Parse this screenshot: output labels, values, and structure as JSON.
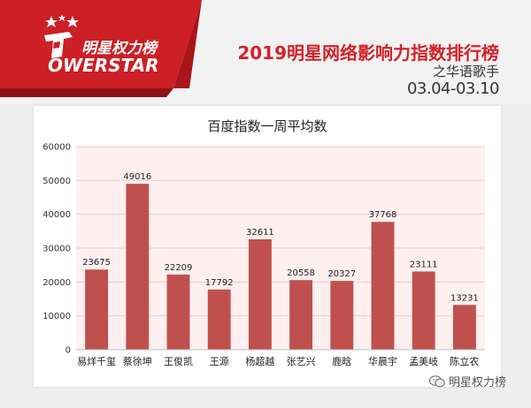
{
  "header": {
    "logo_cn": "明星权力榜",
    "logo_en": "OWERSTAR",
    "title_main": "2019明星网络影响力指数排行榜",
    "title_sub": "之华语歌手",
    "title_date": "03.04-03.10",
    "accent_color": "#d2232a",
    "banner_color": "#cc1f26"
  },
  "watermark": {
    "icon": "wechat-icon",
    "text": "明星权力榜"
  },
  "chart_data": {
    "type": "bar",
    "title": "百度指数一周平均数",
    "categories": [
      "易烊千玺",
      "蔡徐坤",
      "王俊凯",
      "王源",
      "杨超越",
      "张艺兴",
      "鹿晗",
      "华晨宇",
      "孟美岐",
      "陈立农"
    ],
    "values": [
      23675,
      49016,
      22209,
      17792,
      32611,
      20558,
      20327,
      37768,
      23111,
      13231
    ],
    "ylim": [
      0,
      60000
    ],
    "yticks": [
      0,
      10000,
      20000,
      30000,
      40000,
      50000,
      60000
    ],
    "grid": true,
    "bar_color": "#c0504d",
    "plot_bg": "#fdf0ef",
    "xlabel": "",
    "ylabel": ""
  }
}
